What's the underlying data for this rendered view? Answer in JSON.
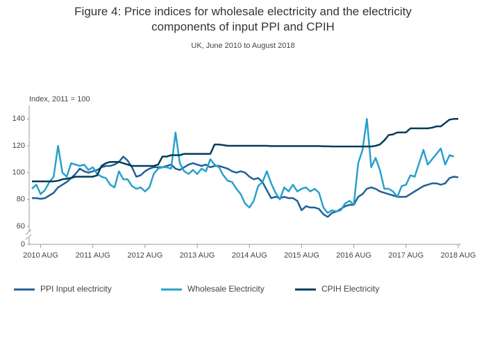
{
  "chart_data": {
    "type": "line",
    "title": "Figure 4: Price indices for wholesale electricity and the electricity components of input PPI and CPIH",
    "subtitle": "UK, June 2010 to August 2018",
    "y_label": "Index, 2011 = 100",
    "x": [
      "2010-06",
      "2010-07",
      "2010-08",
      "2010-09",
      "2010-10",
      "2010-11",
      "2010-12",
      "2011-01",
      "2011-02",
      "2011-03",
      "2011-04",
      "2011-05",
      "2011-06",
      "2011-07",
      "2011-08",
      "2011-09",
      "2011-10",
      "2011-11",
      "2011-12",
      "2012-01",
      "2012-02",
      "2012-03",
      "2012-04",
      "2012-05",
      "2012-06",
      "2012-07",
      "2012-08",
      "2012-09",
      "2012-10",
      "2012-11",
      "2012-12",
      "2013-01",
      "2013-02",
      "2013-03",
      "2013-04",
      "2013-05",
      "2013-06",
      "2013-07",
      "2013-08",
      "2013-09",
      "2013-10",
      "2013-11",
      "2013-12",
      "2014-01",
      "2014-02",
      "2014-03",
      "2014-04",
      "2014-05",
      "2014-06",
      "2014-07",
      "2014-08",
      "2014-09",
      "2014-10",
      "2014-11",
      "2014-12",
      "2015-01",
      "2015-02",
      "2015-03",
      "2015-04",
      "2015-05",
      "2015-06",
      "2015-07",
      "2015-08",
      "2015-09",
      "2015-10",
      "2015-11",
      "2015-12",
      "2016-01",
      "2016-02",
      "2016-03",
      "2016-04",
      "2016-05",
      "2016-06",
      "2016-07",
      "2016-08",
      "2016-09",
      "2016-10",
      "2016-11",
      "2016-12",
      "2017-01",
      "2017-02",
      "2017-03",
      "2017-04",
      "2017-05",
      "2017-06",
      "2017-07",
      "2017-08",
      "2017-09",
      "2017-10",
      "2017-11",
      "2017-12",
      "2018-01",
      "2018-02",
      "2018-03",
      "2018-04",
      "2018-05",
      "2018-06",
      "2018-07",
      "2018-08"
    ],
    "series": [
      {
        "name": "PPI Input electricity",
        "color": "#206095",
        "values": [
          81,
          81,
          80.5,
          81,
          83,
          85,
          89,
          91,
          93,
          96,
          99,
          103,
          101,
          100,
          101,
          102,
          104,
          105,
          105,
          106,
          108,
          112,
          109,
          104,
          97,
          98,
          101,
          103,
          104,
          104,
          104,
          105,
          106,
          103,
          102,
          104,
          106,
          107,
          106,
          105,
          106,
          104,
          105,
          105,
          104,
          103,
          101,
          100,
          101,
          100,
          97,
          95,
          96,
          93,
          87,
          81,
          82,
          81,
          82,
          81,
          81,
          79,
          72,
          75,
          74,
          74,
          73,
          69,
          67,
          70,
          71,
          73,
          75,
          76,
          76,
          82,
          84,
          88,
          89,
          88,
          86,
          85,
          84,
          83,
          82,
          82,
          82,
          84,
          86,
          88,
          90,
          91,
          92,
          92,
          91,
          92,
          96,
          97,
          96.5
        ]
      },
      {
        "name": "Wholesale Electricity",
        "color": "#27a0cc",
        "values": [
          88,
          91,
          84,
          87,
          93,
          97,
          120,
          100,
          97,
          107,
          106,
          105,
          106,
          102,
          104,
          99,
          97,
          96,
          91,
          89,
          101,
          95,
          95,
          90,
          88,
          89,
          86,
          89,
          99,
          103,
          104,
          104,
          103,
          130,
          107,
          101,
          99,
          102,
          99,
          103,
          101,
          110,
          106,
          104,
          98,
          94,
          93,
          88,
          84,
          77,
          74,
          79,
          90,
          93,
          101,
          92,
          85,
          80,
          89,
          86,
          91,
          86,
          88,
          89,
          86,
          88,
          85,
          74,
          70,
          72,
          71,
          72,
          77,
          79,
          76,
          107,
          117,
          140,
          104,
          111,
          102,
          88,
          88,
          86,
          82,
          90,
          91,
          98,
          97,
          107,
          117,
          106,
          110,
          114,
          118,
          106,
          113,
          112,
          null
        ]
      },
      {
        "name": "CPIH Electricity",
        "color": "#003c57",
        "values": [
          93.5,
          93.5,
          93.5,
          93.5,
          93.5,
          93.5,
          94,
          95,
          95.5,
          96,
          97,
          97,
          97,
          97,
          97,
          98,
          105,
          107,
          108,
          108,
          108,
          107,
          106,
          105,
          105,
          105,
          105,
          105,
          105,
          106,
          112,
          112,
          113,
          113,
          113,
          114,
          114,
          114,
          114,
          114,
          114,
          114,
          121,
          121,
          120.5,
          120,
          120,
          120,
          120,
          120,
          120,
          120,
          120,
          120,
          120,
          119.8,
          119.8,
          119.8,
          119.8,
          119.8,
          119.8,
          119.8,
          119.8,
          119.8,
          119.8,
          119.8,
          119.8,
          119.6,
          119.6,
          119.5,
          119.5,
          119.5,
          119.5,
          119.5,
          119.5,
          119.5,
          119.5,
          119.5,
          119.5,
          120,
          121,
          124,
          128,
          128.5,
          130,
          130,
          130,
          133,
          133,
          133,
          133,
          133,
          133.5,
          134.5,
          134.5,
          137,
          139.5,
          140,
          140
        ]
      }
    ],
    "xlim": [
      "2010-06",
      "2018-08"
    ],
    "xticks": [
      {
        "value": "2010-08",
        "label": "2010 AUG"
      },
      {
        "value": "2011-08",
        "label": "2011 AUG"
      },
      {
        "value": "2012-08",
        "label": "2012 AUG"
      },
      {
        "value": "2013-08",
        "label": "2013 AUG"
      },
      {
        "value": "2014-08",
        "label": "2014 AUG"
      },
      {
        "value": "2015-08",
        "label": "2015 AUG"
      },
      {
        "value": "2016-08",
        "label": "2016 AUG"
      },
      {
        "value": "2017-08",
        "label": "2017 AUG"
      },
      {
        "value": "2018-08",
        "label": "2018 AUG"
      }
    ],
    "ylim": [
      0,
      150
    ],
    "yticks": [
      0,
      60,
      80,
      100,
      120,
      140
    ],
    "axis_break": true,
    "grid": false,
    "legend": "bottom"
  }
}
